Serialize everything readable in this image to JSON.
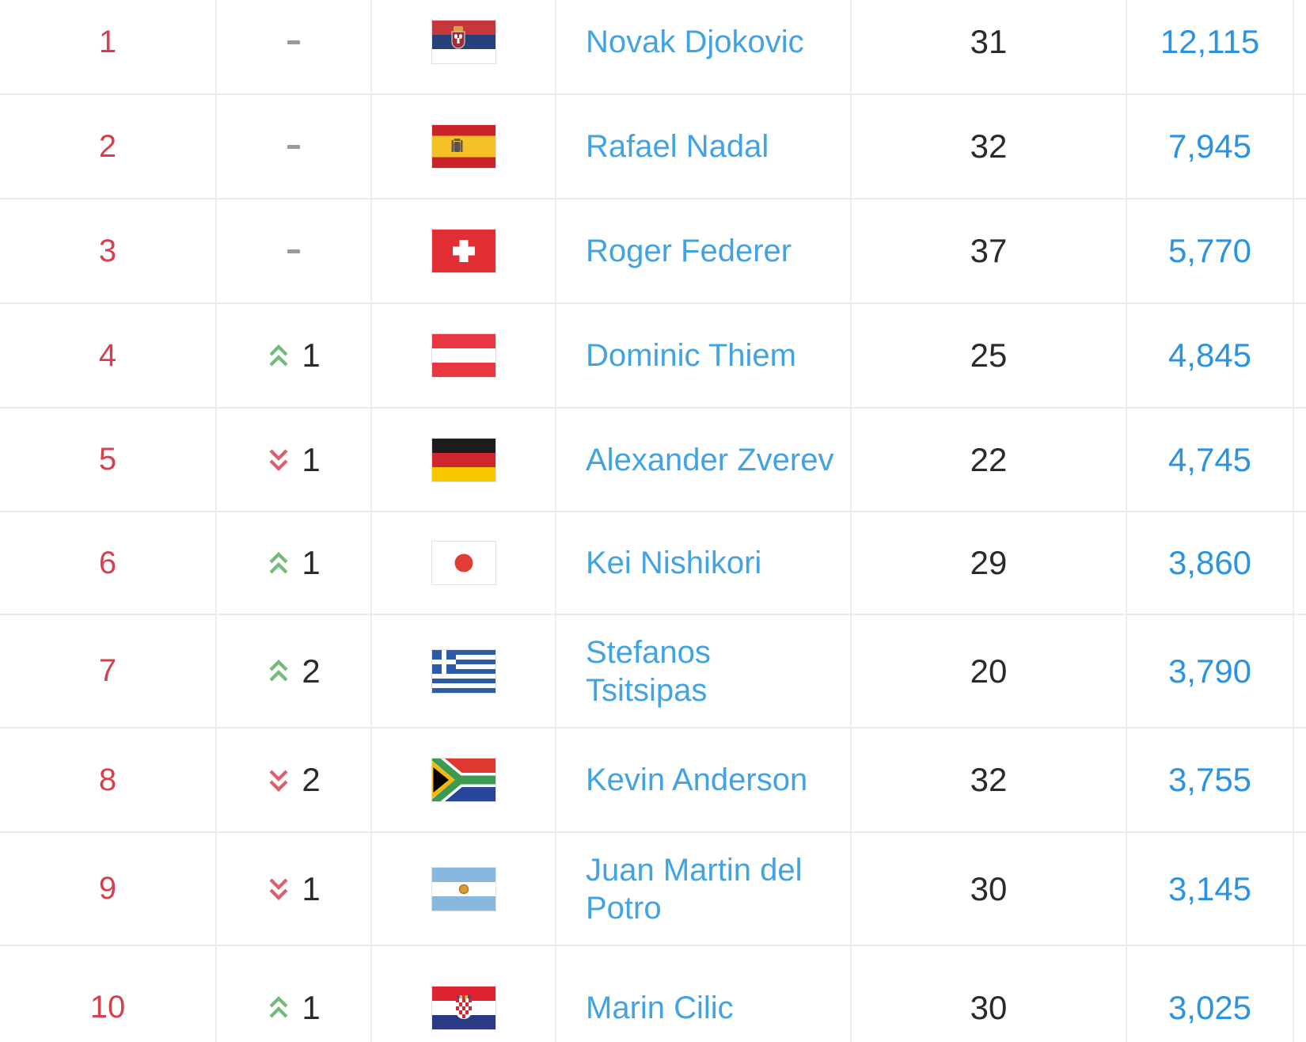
{
  "table": {
    "description": "ATP singles rankings top 10",
    "rows": [
      {
        "rank": "1",
        "movement": {
          "direction": "none",
          "places": ""
        },
        "country": "Serbia",
        "country_code": "rs",
        "player": "Novak Djokovic",
        "age": "31",
        "points": "12,115"
      },
      {
        "rank": "2",
        "movement": {
          "direction": "none",
          "places": ""
        },
        "country": "Spain",
        "country_code": "es",
        "player": "Rafael Nadal",
        "age": "32",
        "points": "7,945"
      },
      {
        "rank": "3",
        "movement": {
          "direction": "none",
          "places": ""
        },
        "country": "Switzerland",
        "country_code": "ch",
        "player": "Roger Federer",
        "age": "37",
        "points": "5,770"
      },
      {
        "rank": "4",
        "movement": {
          "direction": "up",
          "places": "1"
        },
        "country": "Austria",
        "country_code": "at",
        "player": "Dominic Thiem",
        "age": "25",
        "points": "4,845"
      },
      {
        "rank": "5",
        "movement": {
          "direction": "down",
          "places": "1"
        },
        "country": "Germany",
        "country_code": "de",
        "player": "Alexander Zverev",
        "age": "22",
        "points": "4,745"
      },
      {
        "rank": "6",
        "movement": {
          "direction": "up",
          "places": "1"
        },
        "country": "Japan",
        "country_code": "jp",
        "player": "Kei Nishikori",
        "age": "29",
        "points": "3,860"
      },
      {
        "rank": "7",
        "movement": {
          "direction": "up",
          "places": "2"
        },
        "country": "Greece",
        "country_code": "gr",
        "player": "Stefanos\nTsitsipas",
        "age": "20",
        "points": "3,790"
      },
      {
        "rank": "8",
        "movement": {
          "direction": "down",
          "places": "2"
        },
        "country": "South Africa",
        "country_code": "za",
        "player": "Kevin Anderson",
        "age": "32",
        "points": "3,755"
      },
      {
        "rank": "9",
        "movement": {
          "direction": "down",
          "places": "1"
        },
        "country": "Argentina",
        "country_code": "ar",
        "player": "Juan Martin del\nPotro",
        "age": "30",
        "points": "3,145"
      },
      {
        "rank": "10",
        "movement": {
          "direction": "up",
          "places": "1"
        },
        "country": "Croatia",
        "country_code": "hr",
        "player": "Marin Cilic",
        "age": "30",
        "points": "3,025"
      }
    ]
  },
  "appearance": {
    "rank_color": "#d4404d",
    "player_link_color": "#41a3e2",
    "points_link_color": "#2b93e0",
    "age_text_color": "#2a2a2a",
    "movement_up_color": "#74ba7c",
    "movement_down_color": "#dc606b",
    "no_change_dash_color": "#9b9b9b",
    "row_border_color": "#eaeaea"
  },
  "icons": {
    "up": "double-chevron-up-icon",
    "down": "double-chevron-down-icon",
    "none": "no-change-dash"
  }
}
